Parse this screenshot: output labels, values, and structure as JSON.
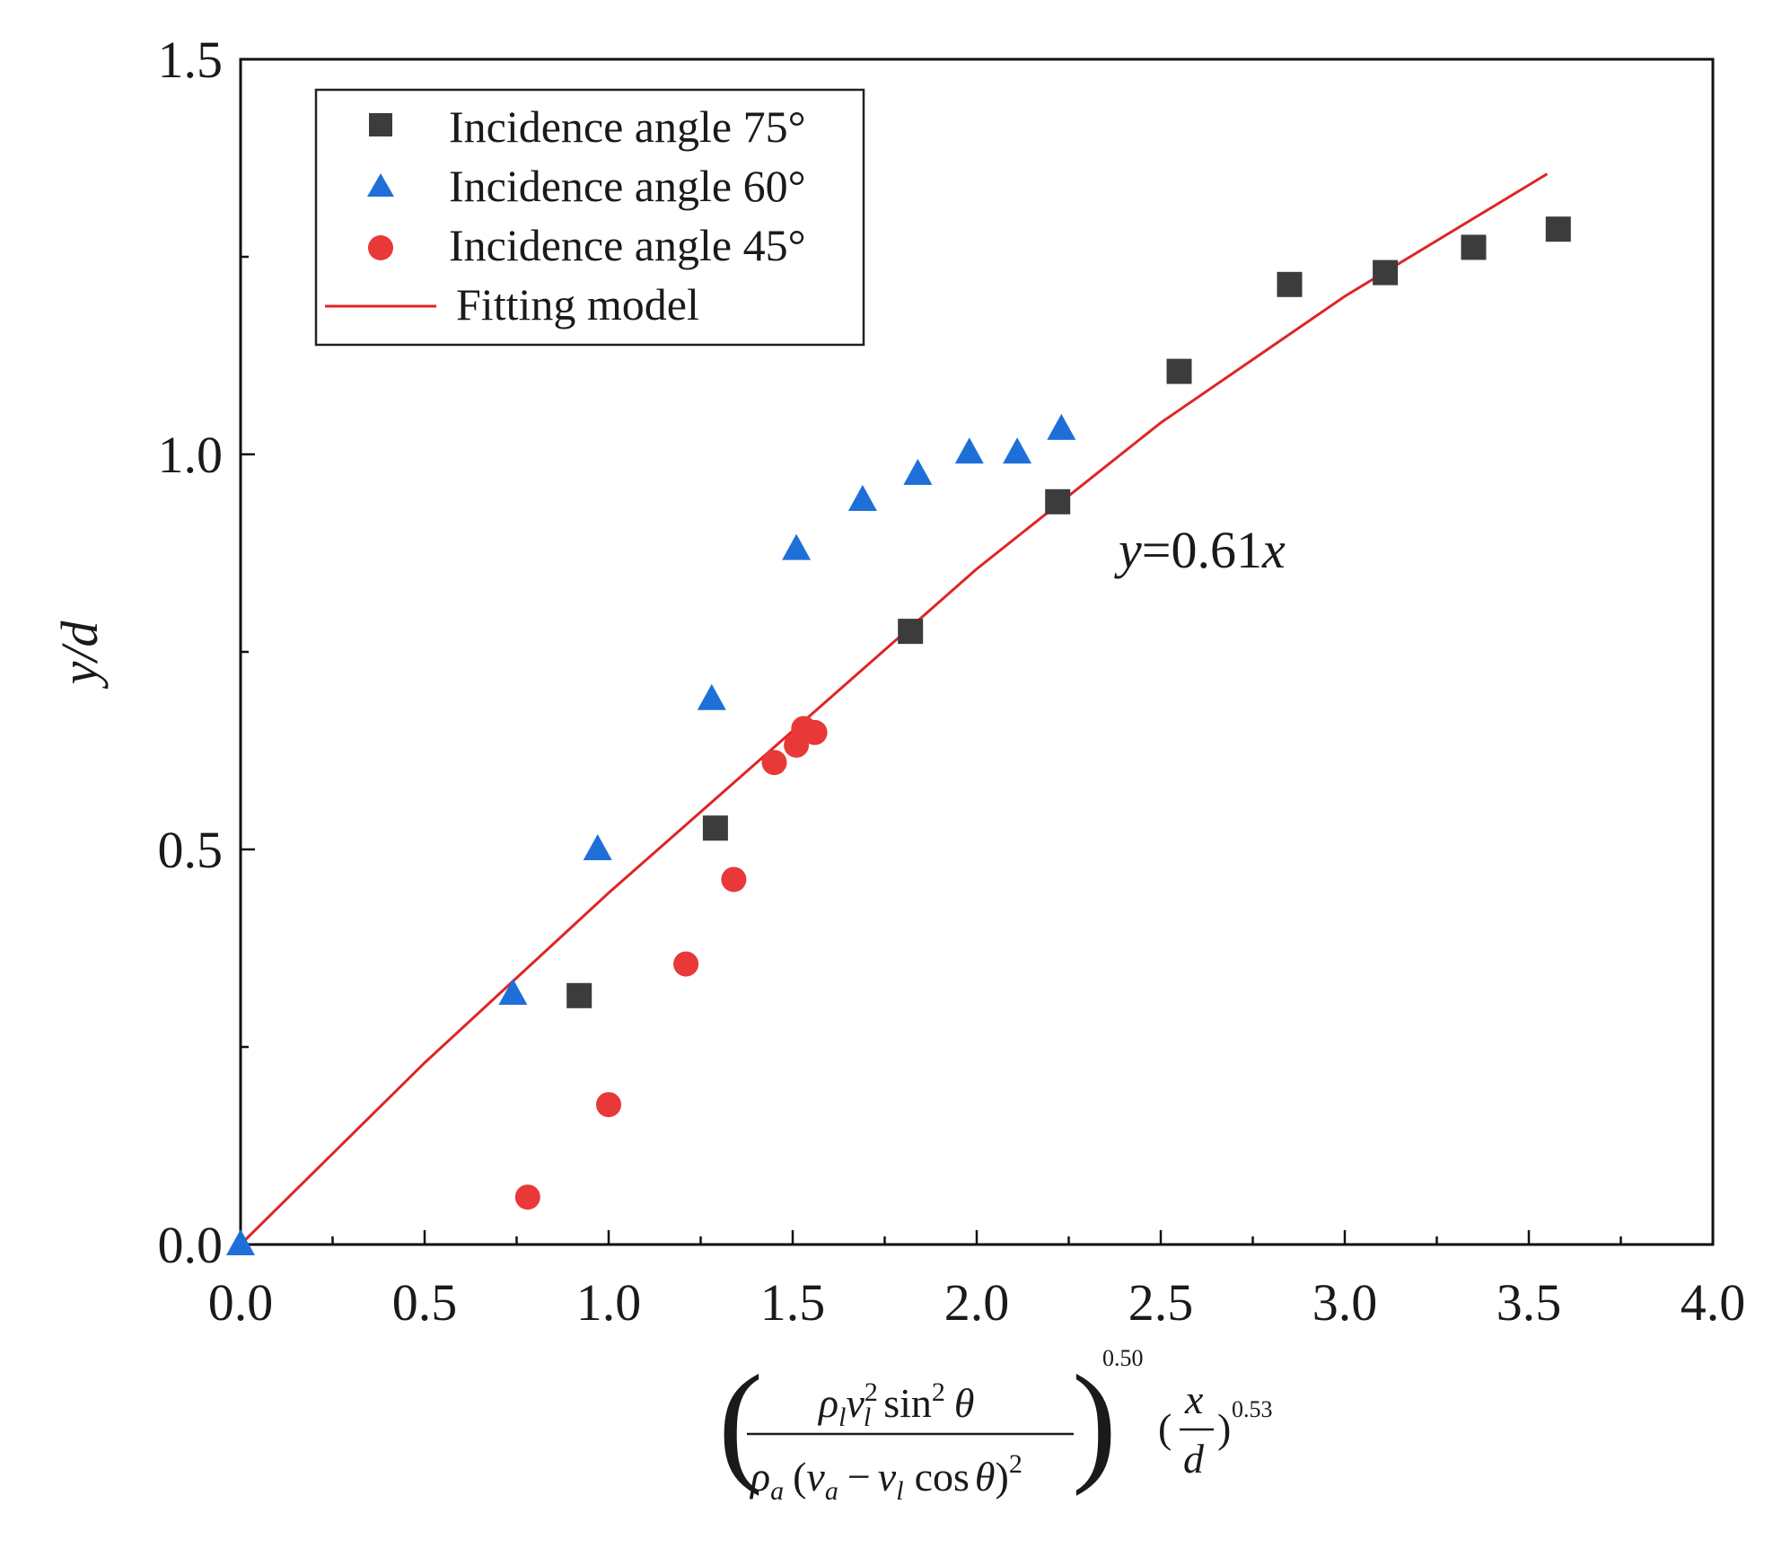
{
  "chart_data": {
    "type": "scatter",
    "title": "",
    "xlabel_parts": {
      "rho_l": "ρ",
      "sub_l": "l",
      "v": "v",
      "sup_2": "2",
      "sin": "sin",
      "theta": "θ",
      "rho_a": "ρ",
      "sub_a": "a",
      "minus": "−",
      "cos": "cos",
      "exp_050": "0.50",
      "x": "x",
      "d": "d",
      "exp_053": "0.53",
      "lparen": "(",
      "rparen": ")"
    },
    "ylabel": "y/d",
    "xlim": [
      0.0,
      4.0
    ],
    "ylim": [
      0.0,
      1.5
    ],
    "xticks": [
      "0.0",
      "0.5",
      "1.0",
      "1.5",
      "2.0",
      "2.5",
      "3.0",
      "3.5",
      "4.0"
    ],
    "yticks": [
      "0.0",
      "0.5",
      "1.0",
      "1.5"
    ],
    "series": [
      {
        "name": "Incidence angle 75°",
        "marker": "square",
        "color": "#3c3c3c",
        "points": [
          [
            0.92,
            0.315
          ],
          [
            1.29,
            0.527
          ],
          [
            1.82,
            0.776
          ],
          [
            2.22,
            0.94
          ],
          [
            2.55,
            1.105
          ],
          [
            2.85,
            1.215
          ],
          [
            3.11,
            1.23
          ],
          [
            3.35,
            1.262
          ],
          [
            3.58,
            1.285
          ]
        ]
      },
      {
        "name": "Incidence angle 60°",
        "marker": "triangle",
        "color": "#1f6fd8",
        "points": [
          [
            0.0,
            0.0
          ],
          [
            0.74,
            0.317
          ],
          [
            0.97,
            0.5
          ],
          [
            1.28,
            0.69
          ],
          [
            1.51,
            0.88
          ],
          [
            1.69,
            0.942
          ],
          [
            1.84,
            0.975
          ],
          [
            1.98,
            1.002
          ],
          [
            2.11,
            1.002
          ],
          [
            2.23,
            1.032
          ]
        ]
      },
      {
        "name": "Incidence angle 45°",
        "marker": "circle",
        "color": "#e83838",
        "points": [
          [
            0.78,
            0.06
          ],
          [
            1.0,
            0.177
          ],
          [
            1.21,
            0.355
          ],
          [
            1.34,
            0.462
          ],
          [
            1.45,
            0.61
          ],
          [
            1.51,
            0.632
          ],
          [
            1.53,
            0.653
          ],
          [
            1.56,
            0.648
          ]
        ]
      }
    ],
    "fit": {
      "name": "Fitting model",
      "color": "#e02424",
      "points": [
        [
          0.0,
          0.0
        ],
        [
          0.5,
          0.23
        ],
        [
          1.0,
          0.445
        ],
        [
          1.5,
          0.65
        ],
        [
          2.0,
          0.855
        ],
        [
          2.5,
          1.04
        ],
        [
          3.0,
          1.2
        ],
        [
          3.55,
          1.355
        ]
      ]
    },
    "annotation": {
      "var": "y",
      "text": "=0.61",
      "tail": "x"
    },
    "legend_position": "top-left"
  }
}
